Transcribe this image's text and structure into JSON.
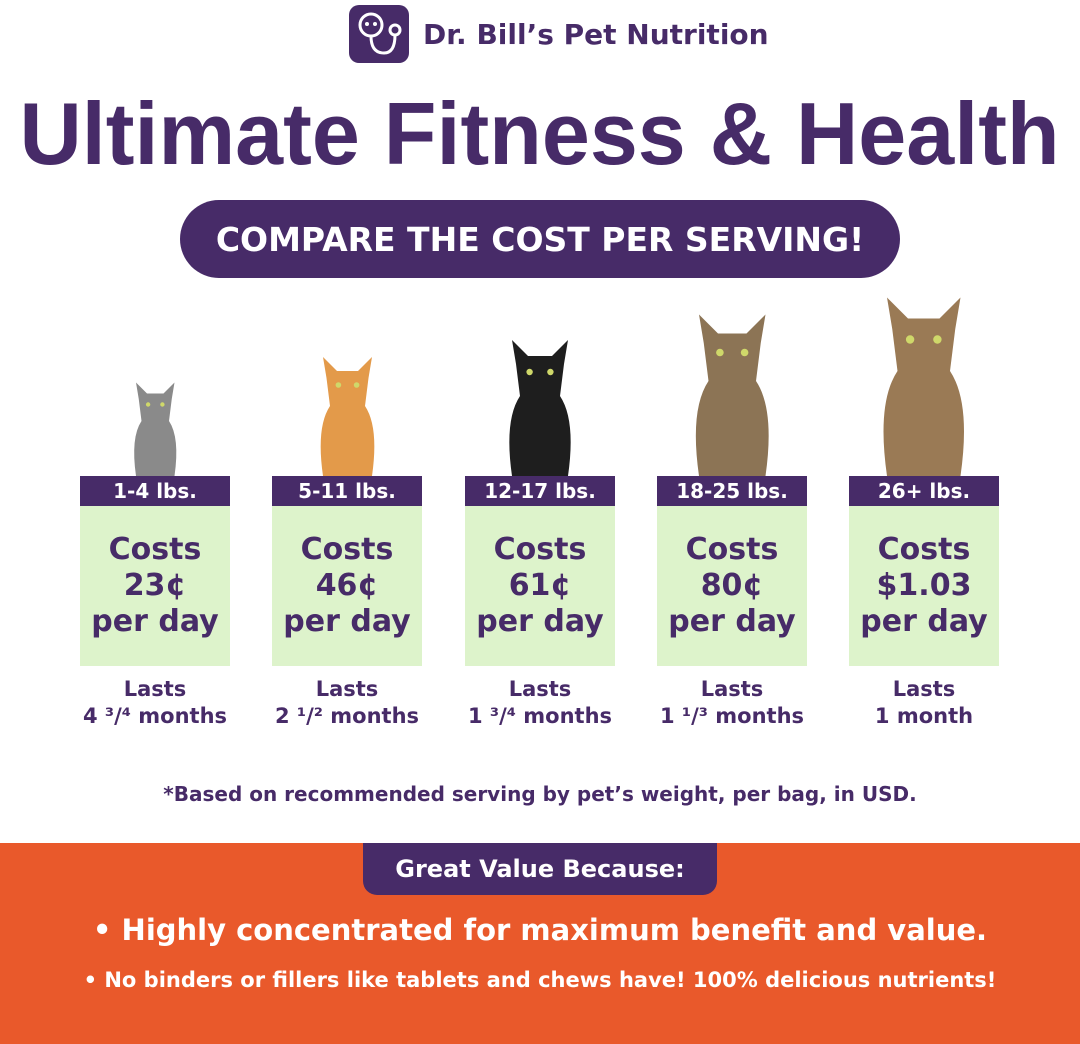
{
  "brand": {
    "name": "Dr. Bill’s Pet Nutrition"
  },
  "headline": "Ultimate Fitness & Health",
  "banner": "COMPARE THE COST PER SERVING!",
  "tiers": [
    {
      "weight": "1-4 lbs.",
      "costs": "Costs",
      "price": "23¢",
      "per": "per day",
      "lasts": "Lasts",
      "duration": "4 ³/⁴ months",
      "cat_color": "#8a8a8a"
    },
    {
      "weight": "5-11 lbs.",
      "costs": "Costs",
      "price": "46¢",
      "per": "per day",
      "lasts": "Lasts",
      "duration": "2 ¹/² months",
      "cat_color": "#e39a4a"
    },
    {
      "weight": "12-17 lbs.",
      "costs": "Costs",
      "price": "61¢",
      "per": "per day",
      "lasts": "Lasts",
      "duration": "1 ³/⁴ months",
      "cat_color": "#1e1e1e"
    },
    {
      "weight": "18-25 lbs.",
      "costs": "Costs",
      "price": "80¢",
      "per": "per day",
      "lasts": "Lasts",
      "duration": "1 ¹/³ months",
      "cat_color": "#8c7455"
    },
    {
      "weight": "26+ lbs.",
      "costs": "Costs",
      "price": "$1.03",
      "per": "per day",
      "lasts": "Lasts",
      "duration": "1 month",
      "cat_color": "#9a7a55"
    }
  ],
  "note": "*Based on recommended serving by pet’s weight, per bag, in USD.",
  "value": {
    "title": "Great Value Because:",
    "bullets": [
      "• Highly concentrated for maximum benefit and value.",
      "• No binders or fillers like tablets and chews have! 100% delicious nutrients!"
    ]
  },
  "colors": {
    "purple": "#472b68",
    "green": "#ddf3cb",
    "orange": "#e9592b"
  }
}
